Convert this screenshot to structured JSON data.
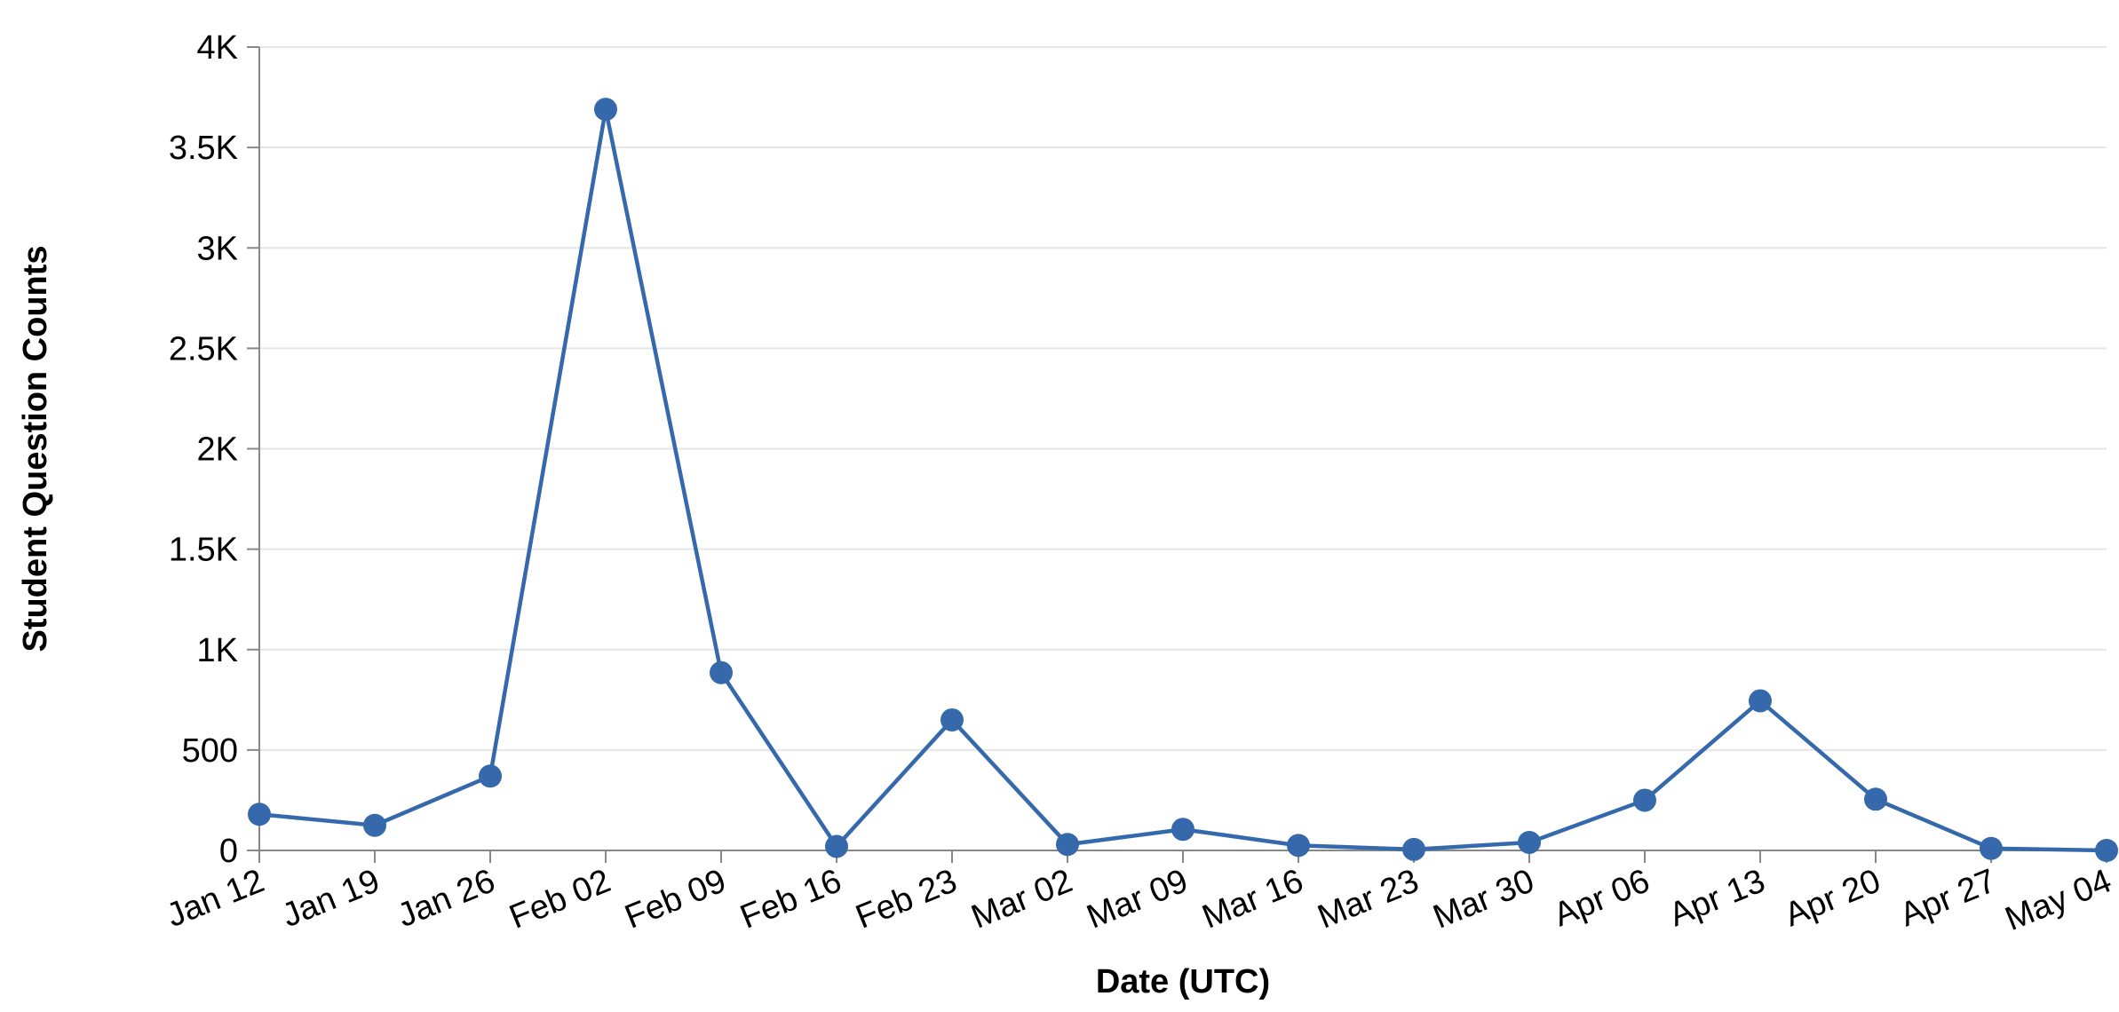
{
  "chart_data": {
    "type": "line",
    "title": "",
    "xlabel": "Date (UTC)",
    "ylabel": "Student Question Counts",
    "x": [
      "Jan 12",
      "Jan 19",
      "Jan 26",
      "Feb 02",
      "Feb 09",
      "Feb 16",
      "Feb 23",
      "Mar 02",
      "Mar 09",
      "Mar 16",
      "Mar 23",
      "Mar 30",
      "Apr 06",
      "Apr 13",
      "Apr 20",
      "Apr 27",
      "May 04"
    ],
    "series": [
      {
        "values": [
          180,
          125,
          370,
          3690,
          885,
          20,
          650,
          30,
          105,
          25,
          5,
          40,
          250,
          745,
          255,
          10,
          0
        ]
      }
    ],
    "ylim": [
      0,
      4000
    ],
    "yticks": [
      {
        "value": 0,
        "label": "0"
      },
      {
        "value": 500,
        "label": "500"
      },
      {
        "value": 1000,
        "label": "1K"
      },
      {
        "value": 1500,
        "label": "1.5K"
      },
      {
        "value": 2000,
        "label": "2K"
      },
      {
        "value": 2500,
        "label": "2.5K"
      },
      {
        "value": 3000,
        "label": "3K"
      },
      {
        "value": 3500,
        "label": "3.5K"
      },
      {
        "value": 4000,
        "label": "4K"
      }
    ],
    "grid": true,
    "legend": "none",
    "colors": {
      "line": "#3569ac",
      "point": "#3569ac",
      "grid": "#e6e6e6",
      "axis": "#888888"
    }
  }
}
